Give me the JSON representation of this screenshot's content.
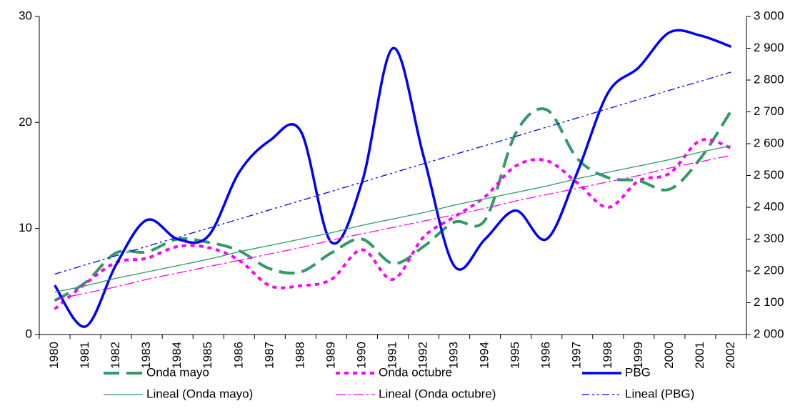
{
  "chart_data": {
    "type": "line",
    "categories": [
      "1980",
      "1981",
      "1982",
      "1983",
      "1984",
      "1985",
      "1986",
      "1987",
      "1988",
      "1989",
      "1990",
      "1991",
      "1992",
      "1993",
      "1994",
      "1995",
      "1996",
      "1997",
      "1998",
      "1999",
      "2000",
      "2001",
      "2002"
    ],
    "ylim": [
      0,
      30
    ],
    "yticks": [
      0,
      10,
      20,
      30
    ],
    "y2lim": [
      2000,
      3000
    ],
    "y2ticks": [
      {
        "value": 2000,
        "label": "2 000"
      },
      {
        "value": 2100,
        "label": "2 100"
      },
      {
        "value": 2200,
        "label": "2 200"
      },
      {
        "value": 2300,
        "label": "2 300"
      },
      {
        "value": 2400,
        "label": "2 400"
      },
      {
        "value": 2500,
        "label": "2 500"
      },
      {
        "value": 2600,
        "label": "2 600"
      },
      {
        "value": 2700,
        "label": "2 700"
      },
      {
        "value": 2800,
        "label": "2 800"
      },
      {
        "value": 2900,
        "label": "2 900"
      },
      {
        "value": 3000,
        "label": "3 000"
      }
    ],
    "smooth": true,
    "series": [
      {
        "name": "Onda mayo",
        "color": "#339966",
        "style": "dash",
        "width": 4,
        "axis": "y",
        "values": [
          3.2,
          4.9,
          7.7,
          7.8,
          9.0,
          8.7,
          7.9,
          6.2,
          5.9,
          7.7,
          9.0,
          6.7,
          8.3,
          10.6,
          10.8,
          19.0,
          21.2,
          16.6,
          14.8,
          14.5,
          13.7,
          16.6,
          21.1
        ]
      },
      {
        "name": "Onda octubre",
        "color": "#ff00ff",
        "style": "dot",
        "width": 4,
        "axis": "y",
        "values": [
          2.4,
          4.8,
          6.8,
          7.2,
          8.3,
          8.2,
          7.0,
          4.6,
          4.6,
          5.2,
          8.0,
          5.2,
          9.2,
          11.1,
          13.0,
          15.9,
          16.4,
          14.3,
          12.0,
          14.5,
          15.2,
          18.3,
          17.6
        ]
      },
      {
        "name": "PBG",
        "color": "#0000ff",
        "style": "solid",
        "width": 3.5,
        "axis": "y2",
        "values": [
          2155,
          2025,
          2220,
          2360,
          2300,
          2310,
          2510,
          2610,
          2640,
          2290,
          2480,
          2900,
          2560,
          2215,
          2300,
          2390,
          2300,
          2510,
          2760,
          2840,
          2950,
          2940,
          2905
        ]
      },
      {
        "name": "Lineal (Onda mayo)",
        "color": "#339966",
        "style": "solid",
        "width": 1.3,
        "axis": "y",
        "values": [
          4.0,
          4.6,
          5.3,
          5.9,
          6.5,
          7.1,
          7.8,
          8.4,
          9.0,
          9.6,
          10.3,
          10.9,
          11.5,
          12.2,
          12.8,
          13.4,
          14.0,
          14.7,
          15.3,
          15.9,
          16.5,
          17.2,
          17.8
        ]
      },
      {
        "name": "Lineal (Onda octubre)",
        "color": "#ff00ff",
        "style": "dashdot",
        "width": 1.3,
        "axis": "y",
        "values": [
          3.3,
          3.9,
          4.5,
          5.2,
          5.8,
          6.4,
          7.0,
          7.6,
          8.2,
          8.9,
          9.5,
          10.1,
          10.7,
          11.3,
          11.9,
          12.6,
          13.2,
          13.8,
          14.4,
          15.0,
          15.7,
          16.3,
          16.9
        ]
      },
      {
        "name": "Lineal (PBG)",
        "color": "#0000ff",
        "style": "dashdotdot",
        "width": 1.3,
        "axis": "y2",
        "values": [
          2190,
          2219,
          2248,
          2277,
          2306,
          2334,
          2363,
          2392,
          2421,
          2450,
          2479,
          2508,
          2537,
          2566,
          2594,
          2623,
          2652,
          2681,
          2710,
          2739,
          2768,
          2796,
          2825
        ]
      }
    ]
  }
}
